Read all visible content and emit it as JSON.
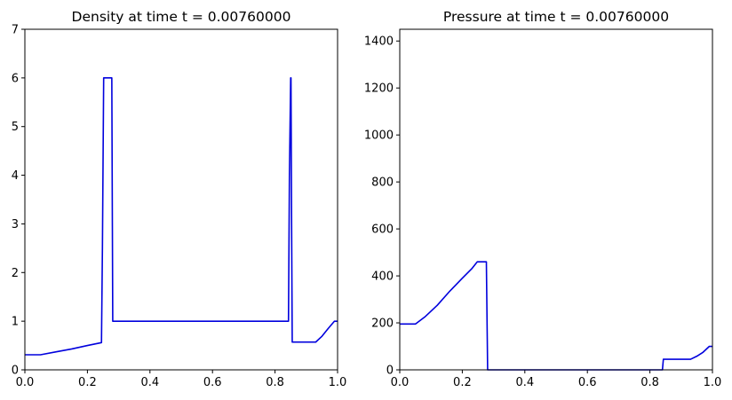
{
  "chart_data": [
    {
      "type": "line",
      "title": "Density at time t =     0.00760000",
      "xlabel": "",
      "ylabel": "",
      "xlim": [
        0.0,
        1.0
      ],
      "ylim": [
        0,
        7
      ],
      "xticks": [
        "0.0",
        "0.2",
        "0.4",
        "0.6",
        "0.8",
        "1.0"
      ],
      "yticks": [
        "0",
        "1",
        "2",
        "3",
        "4",
        "5",
        "6",
        "7"
      ],
      "grid": false,
      "color": "#0000dd",
      "x": [
        0.0,
        0.05,
        0.1,
        0.15,
        0.2,
        0.245,
        0.248,
        0.252,
        0.27,
        0.275,
        0.278,
        0.281,
        0.4,
        0.6,
        0.8,
        0.843,
        0.846,
        0.85,
        0.851,
        0.853,
        0.855,
        0.87,
        0.9,
        0.93,
        0.95,
        0.97,
        0.99,
        1.0
      ],
      "y": [
        0.31,
        0.31,
        0.37,
        0.43,
        0.5,
        0.56,
        2.5,
        6.0,
        6.0,
        6.0,
        6.0,
        1.0,
        1.0,
        1.0,
        1.0,
        1.0,
        4.0,
        6.0,
        6.0,
        3.0,
        0.57,
        0.57,
        0.57,
        0.57,
        0.69,
        0.85,
        1.0,
        1.0
      ]
    },
    {
      "type": "line",
      "title": "Pressure at time t =     0.00760000",
      "xlabel": "",
      "ylabel": "",
      "xlim": [
        0.0,
        1.0
      ],
      "ylim": [
        0,
        1450
      ],
      "xticks": [
        "0.0",
        "0.2",
        "0.4",
        "0.6",
        "0.8",
        "1.0"
      ],
      "yticks": [
        "0",
        "200",
        "400",
        "600",
        "800",
        "1000",
        "1200",
        "1400"
      ],
      "grid": false,
      "color": "#0000dd",
      "x": [
        0.0,
        0.045,
        0.05,
        0.08,
        0.12,
        0.16,
        0.2,
        0.23,
        0.248,
        0.252,
        0.275,
        0.277,
        0.281,
        0.4,
        0.6,
        0.8,
        0.84,
        0.843,
        0.845,
        0.9,
        0.93,
        0.95,
        0.97,
        0.99,
        1.0
      ],
      "y": [
        195,
        195,
        195,
        225,
        275,
        335,
        390,
        430,
        460,
        460,
        460,
        460,
        0,
        0,
        0,
        0,
        0,
        45,
        45,
        45,
        45,
        58,
        75,
        100,
        100
      ]
    }
  ]
}
